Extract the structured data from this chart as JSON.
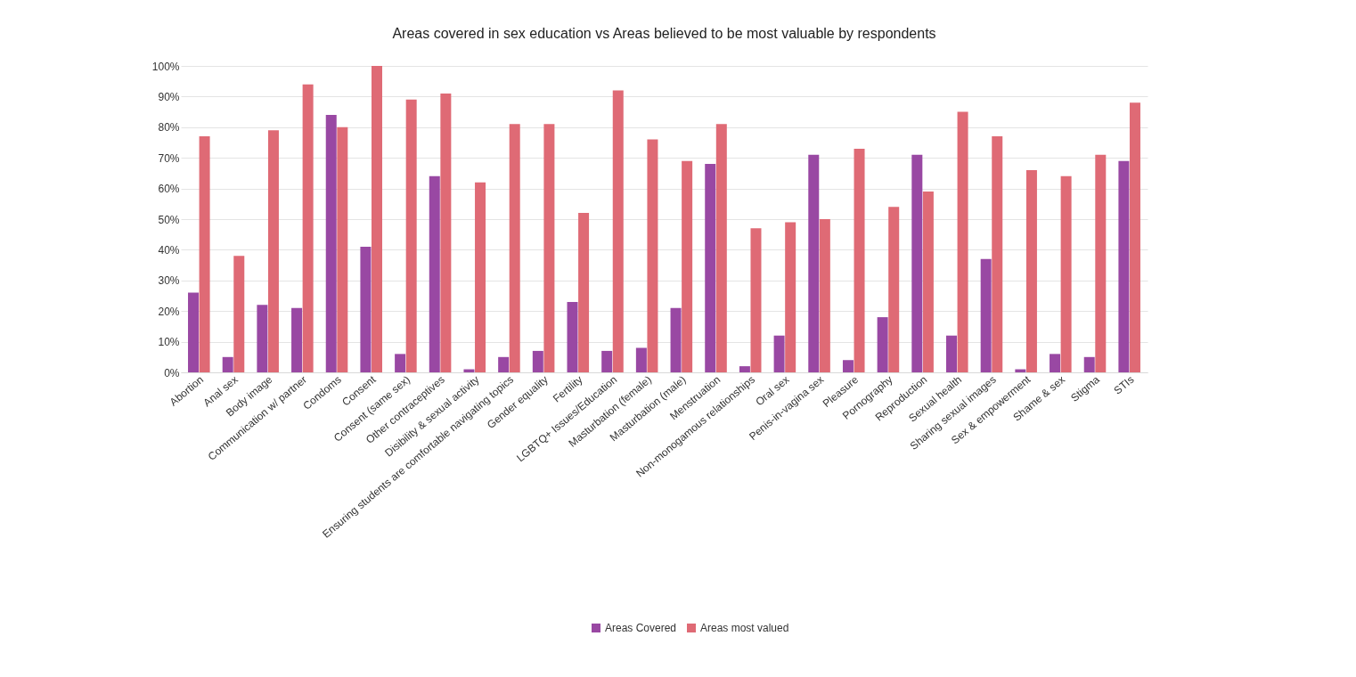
{
  "chart_data": {
    "type": "bar",
    "title": "Areas covered in sex education vs Areas believed to be most valuable by respondents",
    "categories": [
      "Abortion",
      "Anal sex",
      "Body image",
      "Communication w/ partner",
      "Condoms",
      "Consent",
      "Consent (same sex)",
      "Other contraceptives",
      "Disibility & sexual activity",
      "Ensuring students are comfortable navigating topics",
      "Gender equality",
      "Fertility",
      "LGBTQ+ Issues/Education",
      "Masturbation (female)",
      "Masturbation (male)",
      "Menstruation",
      "Non-monogamous relationships",
      "Oral sex",
      "Penis-in-vagina sex",
      "Pleasure",
      "Pornography",
      "Reproduction",
      "Sexual health",
      "Sharing sexual images",
      "Sex & empowerment",
      "Shame & sex",
      "Stigma",
      "STIs"
    ],
    "series": [
      {
        "name": "Areas Covered",
        "color": "#9948a3",
        "values": [
          26,
          5,
          22,
          21,
          84,
          41,
          6,
          64,
          1,
          5,
          7,
          23,
          7,
          8,
          21,
          68,
          2,
          12,
          71,
          4,
          18,
          71,
          12,
          37,
          1,
          6,
          5,
          69
        ]
      },
      {
        "name": "Areas most valued",
        "color": "#df6a75",
        "values": [
          77,
          38,
          79,
          94,
          80,
          100,
          89,
          91,
          62,
          81,
          81,
          52,
          92,
          76,
          69,
          81,
          47,
          49,
          50,
          73,
          54,
          59,
          85,
          77,
          66,
          64,
          71,
          88
        ]
      }
    ],
    "ylim": [
      0,
      100
    ],
    "yticks": [
      {
        "value": 0,
        "label": "0%"
      },
      {
        "value": 10,
        "label": "10%"
      },
      {
        "value": 20,
        "label": "20%"
      },
      {
        "value": 30,
        "label": "30%"
      },
      {
        "value": 40,
        "label": "40%"
      },
      {
        "value": 50,
        "label": "50%"
      },
      {
        "value": 60,
        "label": "60%"
      },
      {
        "value": 70,
        "label": "70%"
      },
      {
        "value": 80,
        "label": "80%"
      },
      {
        "value": 90,
        "label": "90%"
      },
      {
        "value": 100,
        "label": "100%"
      }
    ],
    "grid": "y",
    "legend": "bottom"
  }
}
